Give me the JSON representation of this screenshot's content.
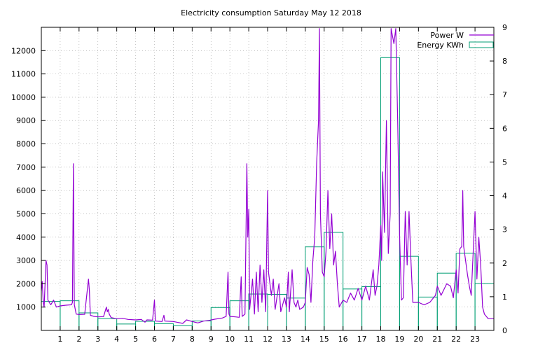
{
  "chart_data": {
    "type": "line",
    "title": "Electricity consumption Saturday May 12 2018",
    "x": {
      "ticks": [
        1,
        2,
        3,
        4,
        5,
        6,
        7,
        8,
        9,
        10,
        11,
        12,
        13,
        14,
        15,
        16,
        17,
        18,
        19,
        20,
        21,
        22,
        23
      ],
      "range": [
        0,
        24
      ],
      "grid": true
    },
    "y_left": {
      "ticks": [
        1000,
        2000,
        3000,
        4000,
        5000,
        6000,
        7000,
        8000,
        9000,
        10000,
        11000,
        12000
      ],
      "range": [
        0,
        13000
      ],
      "grid": true
    },
    "y_right": {
      "ticks": [
        0,
        1,
        2,
        3,
        4,
        5,
        6,
        7,
        8,
        9
      ],
      "range": [
        0,
        9
      ]
    },
    "legend": {
      "placement": "top-right",
      "entries": [
        {
          "label": "Power W",
          "color": "#9400d3",
          "style": "line"
        },
        {
          "label": "Energy KWh",
          "color": "#009e73",
          "style": "box"
        }
      ]
    },
    "series": [
      {
        "name": "Energy KWh",
        "kind": "step-bars",
        "axis": "right",
        "color": "#009e73",
        "values": [
          0.86,
          0.88,
          0.52,
          0.35,
          0.19,
          0.27,
          0.2,
          0.14,
          0.28,
          0.68,
          0.88,
          1.08,
          1.07,
          0.96,
          2.48,
          2.91,
          1.23,
          1.3,
          8.1,
          2.2,
          0.99,
          1.7,
          2.29,
          1.39
        ]
      },
      {
        "name": "Power W",
        "kind": "line",
        "axis": "left",
        "color": "#9400d3",
        "points": [
          [
            0.0,
            1700
          ],
          [
            0.05,
            2100
          ],
          [
            0.1,
            1200
          ],
          [
            0.15,
            1000
          ],
          [
            0.25,
            3000
          ],
          [
            0.3,
            2800
          ],
          [
            0.35,
            1300
          ],
          [
            0.5,
            1100
          ],
          [
            0.65,
            1300
          ],
          [
            0.8,
            1000
          ],
          [
            1.0,
            1050
          ],
          [
            1.3,
            1080
          ],
          [
            1.6,
            1100
          ],
          [
            1.65,
            1200
          ],
          [
            1.7,
            7150
          ],
          [
            1.75,
            1100
          ],
          [
            1.85,
            700
          ],
          [
            2.0,
            680
          ],
          [
            2.3,
            690
          ],
          [
            2.5,
            2200
          ],
          [
            2.55,
            1700
          ],
          [
            2.6,
            650
          ],
          [
            2.8,
            600
          ],
          [
            3.0,
            580
          ],
          [
            3.3,
            590
          ],
          [
            3.45,
            1000
          ],
          [
            3.5,
            800
          ],
          [
            3.55,
            900
          ],
          [
            3.6,
            700
          ],
          [
            3.7,
            550
          ],
          [
            4.0,
            500
          ],
          [
            4.3,
            520
          ],
          [
            4.6,
            470
          ],
          [
            5.0,
            450
          ],
          [
            5.3,
            470
          ],
          [
            5.5,
            350
          ],
          [
            5.6,
            450
          ],
          [
            5.9,
            440
          ],
          [
            6.0,
            1300
          ],
          [
            6.05,
            400
          ],
          [
            6.4,
            380
          ],
          [
            6.5,
            650
          ],
          [
            6.55,
            400
          ],
          [
            7.0,
            380
          ],
          [
            7.5,
            300
          ],
          [
            7.7,
            450
          ],
          [
            8.0,
            380
          ],
          [
            8.3,
            320
          ],
          [
            8.6,
            400
          ],
          [
            8.9,
            430
          ],
          [
            9.2,
            480
          ],
          [
            9.6,
            530
          ],
          [
            9.8,
            600
          ],
          [
            9.9,
            2500
          ],
          [
            9.95,
            700
          ],
          [
            10.0,
            600
          ],
          [
            10.3,
            580
          ],
          [
            10.5,
            560
          ],
          [
            10.6,
            2300
          ],
          [
            10.65,
            600
          ],
          [
            10.8,
            700
          ],
          [
            10.9,
            7150
          ],
          [
            10.95,
            4000
          ],
          [
            11.0,
            5200
          ],
          [
            11.05,
            900
          ],
          [
            11.2,
            2200
          ],
          [
            11.3,
            700
          ],
          [
            11.4,
            2500
          ],
          [
            11.5,
            800
          ],
          [
            11.6,
            2800
          ],
          [
            11.7,
            1200
          ],
          [
            11.8,
            2600
          ],
          [
            11.9,
            800
          ],
          [
            12.0,
            6000
          ],
          [
            12.05,
            2500
          ],
          [
            12.2,
            1500
          ],
          [
            12.3,
            2200
          ],
          [
            12.4,
            900
          ],
          [
            12.6,
            2000
          ],
          [
            12.7,
            800
          ],
          [
            12.9,
            1400
          ],
          [
            13.0,
            1000
          ],
          [
            13.1,
            2500
          ],
          [
            13.15,
            800
          ],
          [
            13.3,
            2600
          ],
          [
            13.4,
            1200
          ],
          [
            13.5,
            1000
          ],
          [
            13.6,
            1300
          ],
          [
            13.7,
            900
          ],
          [
            13.9,
            1000
          ],
          [
            14.0,
            1200
          ],
          [
            14.1,
            2700
          ],
          [
            14.2,
            2400
          ],
          [
            14.3,
            1200
          ],
          [
            14.4,
            3000
          ],
          [
            14.5,
            4000
          ],
          [
            14.6,
            7150
          ],
          [
            14.7,
            9000
          ],
          [
            14.75,
            12950
          ],
          [
            14.8,
            5000
          ],
          [
            14.9,
            2500
          ],
          [
            15.0,
            2300
          ],
          [
            15.1,
            3400
          ],
          [
            15.2,
            6000
          ],
          [
            15.3,
            3500
          ],
          [
            15.4,
            5000
          ],
          [
            15.5,
            2800
          ],
          [
            15.6,
            3400
          ],
          [
            15.7,
            2000
          ],
          [
            15.8,
            1000
          ],
          [
            16.0,
            1300
          ],
          [
            16.2,
            1200
          ],
          [
            16.4,
            1600
          ],
          [
            16.6,
            1300
          ],
          [
            16.8,
            1800
          ],
          [
            17.0,
            1300
          ],
          [
            17.2,
            1900
          ],
          [
            17.4,
            1300
          ],
          [
            17.6,
            2600
          ],
          [
            17.7,
            1500
          ],
          [
            17.8,
            1900
          ],
          [
            17.9,
            2800
          ],
          [
            18.0,
            4500
          ],
          [
            18.05,
            3000
          ],
          [
            18.1,
            6800
          ],
          [
            18.2,
            4200
          ],
          [
            18.3,
            9000
          ],
          [
            18.4,
            3300
          ],
          [
            18.5,
            5000
          ],
          [
            18.55,
            12950
          ],
          [
            18.7,
            12300
          ],
          [
            18.8,
            12950
          ],
          [
            18.9,
            9000
          ],
          [
            19.0,
            4100
          ],
          [
            19.1,
            1300
          ],
          [
            19.2,
            1400
          ],
          [
            19.3,
            5100
          ],
          [
            19.4,
            2800
          ],
          [
            19.5,
            5100
          ],
          [
            19.6,
            3000
          ],
          [
            19.7,
            1200
          ],
          [
            19.8,
            1200
          ],
          [
            20.0,
            1200
          ],
          [
            20.3,
            1100
          ],
          [
            20.6,
            1200
          ],
          [
            20.9,
            1500
          ],
          [
            21.0,
            1900
          ],
          [
            21.2,
            1500
          ],
          [
            21.5,
            2000
          ],
          [
            21.7,
            1900
          ],
          [
            21.85,
            1400
          ],
          [
            22.0,
            2600
          ],
          [
            22.1,
            1600
          ],
          [
            22.2,
            3500
          ],
          [
            22.3,
            3600
          ],
          [
            22.35,
            6000
          ],
          [
            22.4,
            3600
          ],
          [
            22.6,
            2400
          ],
          [
            22.7,
            1900
          ],
          [
            22.8,
            1500
          ],
          [
            23.0,
            5100
          ],
          [
            23.1,
            2200
          ],
          [
            23.2,
            4000
          ],
          [
            23.3,
            2800
          ],
          [
            23.4,
            1000
          ],
          [
            23.5,
            700
          ],
          [
            23.7,
            500
          ],
          [
            24.0,
            500
          ]
        ]
      }
    ]
  }
}
